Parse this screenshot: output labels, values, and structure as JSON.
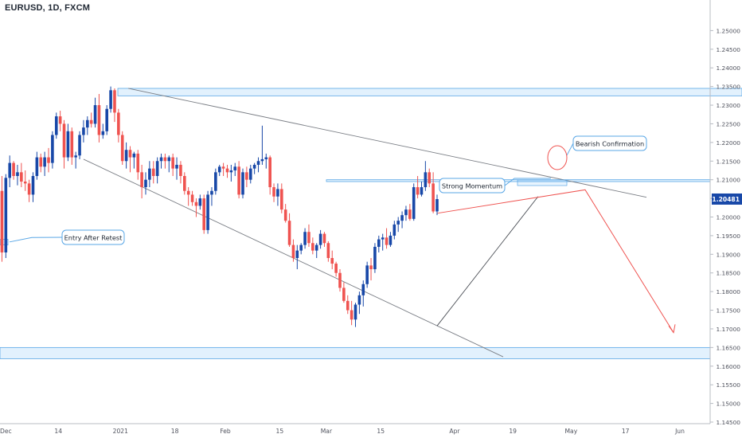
{
  "header": {
    "title": "EURUSD, 1D, FXCM"
  },
  "price_label": "1.20481",
  "chart_data": {
    "type": "candlestick",
    "title": "EURUSD, 1D, FXCM",
    "price_axis": {
      "min": 1.145,
      "max": 1.255,
      "ticks": [
        "1.25000",
        "1.24500",
        "1.24000",
        "1.23500",
        "1.23000",
        "1.22500",
        "1.22000",
        "1.21500",
        "1.21000",
        "1.20500",
        "1.20000",
        "1.19500",
        "1.19000",
        "1.18500",
        "1.18000",
        "1.17500",
        "1.17000",
        "1.16500",
        "1.16000",
        "1.15500",
        "1.15000",
        "1.14500"
      ],
      "current_price": 1.20481
    },
    "time_axis": {
      "labels": [
        "Dec",
        "14",
        "2021",
        "18",
        "Feb",
        "15",
        "Mar",
        "15",
        "Apr",
        "19",
        "May",
        "17",
        "Jun"
      ],
      "label_bars": [
        -0.5,
        14.5,
        30.5,
        44.5,
        57.5,
        71.5,
        83.5,
        97.5,
        116.5,
        131.5,
        146.5,
        160.5,
        174.5
      ]
    },
    "candles": [
      [
        1.207,
        1.211,
        1.188,
        1.1905
      ],
      [
        1.1905,
        1.2115,
        1.189,
        1.2105
      ],
      [
        1.2105,
        1.2165,
        1.208,
        1.2145
      ],
      [
        1.2145,
        1.215,
        1.21,
        1.211
      ],
      [
        1.211,
        1.214,
        1.2085,
        1.212
      ],
      [
        1.212,
        1.2145,
        1.208,
        1.2095
      ],
      [
        1.2095,
        1.2125,
        1.207,
        1.209
      ],
      [
        1.209,
        1.21,
        1.204,
        1.206
      ],
      [
        1.206,
        1.212,
        1.204,
        1.211
      ],
      [
        1.211,
        1.2175,
        1.21,
        1.216
      ],
      [
        1.216,
        1.217,
        1.212,
        1.2135
      ],
      [
        1.2135,
        1.2175,
        1.211,
        1.216
      ],
      [
        1.216,
        1.2185,
        1.212,
        1.2145
      ],
      [
        1.2145,
        1.223,
        1.213,
        1.222
      ],
      [
        1.222,
        1.228,
        1.221,
        1.227
      ],
      [
        1.227,
        1.2285,
        1.223,
        1.225
      ],
      [
        1.225,
        1.226,
        1.213,
        1.216
      ],
      [
        1.216,
        1.225,
        1.215,
        1.223
      ],
      [
        1.223,
        1.224,
        1.214,
        1.216
      ],
      [
        1.216,
        1.2175,
        1.213,
        1.2165
      ],
      [
        1.2165,
        1.223,
        1.2155,
        1.222
      ],
      [
        1.222,
        1.226,
        1.22,
        1.224
      ],
      [
        1.224,
        1.227,
        1.222,
        1.226
      ],
      [
        1.226,
        1.228,
        1.224,
        1.225
      ],
      [
        1.225,
        1.232,
        1.224,
        1.23
      ],
      [
        1.23,
        1.233,
        1.22,
        1.222
      ],
      [
        1.222,
        1.225,
        1.221,
        1.223
      ],
      [
        1.223,
        1.23,
        1.222,
        1.229
      ],
      [
        1.229,
        1.235,
        1.228,
        1.234
      ],
      [
        1.234,
        1.2345,
        1.2255,
        1.228
      ],
      [
        1.228,
        1.229,
        1.22,
        1.222
      ],
      [
        1.222,
        1.223,
        1.214,
        1.215
      ],
      [
        1.215,
        1.22,
        1.213,
        1.218
      ],
      [
        1.218,
        1.219,
        1.212,
        1.216
      ],
      [
        1.216,
        1.2175,
        1.213,
        1.217
      ],
      [
        1.217,
        1.218,
        1.21,
        1.212
      ],
      [
        1.212,
        1.214,
        1.205,
        1.208
      ],
      [
        1.208,
        1.212,
        1.206,
        1.21
      ],
      [
        1.21,
        1.215,
        1.208,
        1.213
      ],
      [
        1.213,
        1.215,
        1.209,
        1.211
      ],
      [
        1.211,
        1.216,
        1.209,
        1.215
      ],
      [
        1.215,
        1.217,
        1.213,
        1.216
      ],
      [
        1.216,
        1.217,
        1.213,
        1.215
      ],
      [
        1.215,
        1.2165,
        1.212,
        1.216
      ],
      [
        1.216,
        1.217,
        1.211,
        1.213
      ],
      [
        1.213,
        1.216,
        1.21,
        1.214
      ],
      [
        1.214,
        1.215,
        1.209,
        1.211
      ],
      [
        1.211,
        1.212,
        1.206,
        1.207
      ],
      [
        1.207,
        1.208,
        1.203,
        1.206
      ],
      [
        1.206,
        1.207,
        1.203,
        1.204
      ],
      [
        1.204,
        1.205,
        1.2,
        1.203
      ],
      [
        1.203,
        1.206,
        1.202,
        1.205
      ],
      [
        1.205,
        1.206,
        1.1955,
        1.1965
      ],
      [
        1.1965,
        1.207,
        1.1955,
        1.206
      ],
      [
        1.206,
        1.208,
        1.203,
        1.207
      ],
      [
        1.207,
        1.213,
        1.206,
        1.212
      ],
      [
        1.212,
        1.214,
        1.211,
        1.2135
      ],
      [
        1.2135,
        1.2145,
        1.211,
        1.213
      ],
      [
        1.213,
        1.214,
        1.2105,
        1.212
      ],
      [
        1.212,
        1.214,
        1.2095,
        1.2125
      ],
      [
        1.2125,
        1.2145,
        1.211,
        1.2135
      ],
      [
        1.2135,
        1.215,
        1.205,
        1.206
      ],
      [
        1.206,
        1.213,
        1.205,
        1.212
      ],
      [
        1.212,
        1.2135,
        1.208,
        1.21
      ],
      [
        1.21,
        1.214,
        1.209,
        1.213
      ],
      [
        1.213,
        1.2145,
        1.2115,
        1.214
      ],
      [
        1.214,
        1.216,
        1.212,
        1.215
      ],
      [
        1.215,
        1.2245,
        1.214,
        1.2155
      ],
      [
        1.2155,
        1.217,
        1.213,
        1.216
      ],
      [
        1.216,
        1.2165,
        1.206,
        1.208
      ],
      [
        1.208,
        1.209,
        1.204,
        1.2055
      ],
      [
        1.2055,
        1.209,
        1.203,
        1.2075
      ],
      [
        1.2075,
        1.209,
        1.201,
        1.202
      ],
      [
        1.202,
        1.2035,
        1.1985,
        1.199
      ],
      [
        1.199,
        1.201,
        1.192,
        1.1925
      ],
      [
        1.1925,
        1.194,
        1.188,
        1.189
      ],
      [
        1.189,
        1.1925,
        1.186,
        1.191
      ],
      [
        1.191,
        1.193,
        1.19,
        1.1925
      ],
      [
        1.1925,
        1.197,
        1.1915,
        1.196
      ],
      [
        1.196,
        1.198,
        1.192,
        1.193
      ],
      [
        1.193,
        1.1945,
        1.19,
        1.191
      ],
      [
        1.191,
        1.193,
        1.189,
        1.1925
      ],
      [
        1.1925,
        1.1965,
        1.1915,
        1.1955
      ],
      [
        1.1955,
        1.196,
        1.192,
        1.193
      ],
      [
        1.193,
        1.1935,
        1.188,
        1.189
      ],
      [
        1.189,
        1.191,
        1.186,
        1.1875
      ],
      [
        1.1875,
        1.188,
        1.184,
        1.185
      ],
      [
        1.185,
        1.186,
        1.18,
        1.181
      ],
      [
        1.181,
        1.1825,
        1.177,
        1.1775
      ],
      [
        1.1775,
        1.179,
        1.174,
        1.175
      ],
      [
        1.175,
        1.1775,
        1.171,
        1.1725
      ],
      [
        1.1725,
        1.177,
        1.1705,
        1.1765
      ],
      [
        1.1765,
        1.18,
        1.174,
        1.179
      ],
      [
        1.179,
        1.183,
        1.176,
        1.182
      ],
      [
        1.182,
        1.188,
        1.181,
        1.187
      ],
      [
        1.187,
        1.189,
        1.183,
        1.186
      ],
      [
        1.186,
        1.193,
        1.185,
        1.192
      ],
      [
        1.192,
        1.195,
        1.1905,
        1.194
      ],
      [
        1.194,
        1.1955,
        1.191,
        1.1945
      ],
      [
        1.1945,
        1.197,
        1.1915,
        1.1925
      ],
      [
        1.1925,
        1.196,
        1.192,
        1.195
      ],
      [
        1.195,
        1.199,
        1.194,
        1.198
      ],
      [
        1.198,
        1.2,
        1.196,
        1.199
      ],
      [
        1.199,
        1.2015,
        1.197,
        1.2005
      ],
      [
        1.2005,
        1.203,
        1.199,
        1.202
      ],
      [
        1.202,
        1.2035,
        1.199,
        1.1995
      ],
      [
        1.1995,
        1.209,
        1.199,
        1.208
      ],
      [
        1.208,
        1.211,
        1.205,
        1.206
      ],
      [
        1.206,
        1.2095,
        1.2055,
        1.208
      ],
      [
        1.208,
        1.215,
        1.207,
        1.212
      ],
      [
        1.212,
        1.213,
        1.208,
        1.209
      ],
      [
        1.209,
        1.212,
        1.201,
        1.2015
      ],
      [
        1.2015,
        1.206,
        1.2005,
        1.2048
      ]
    ],
    "levels": [
      {
        "label": "resistance-zone",
        "from": 1.2345,
        "to": 1.2325
      },
      {
        "label": "broken-level",
        "from": 1.21,
        "to": 1.2095
      },
      {
        "label": "support-zone",
        "from": 1.165,
        "to": 1.162
      },
      {
        "label": "entry-zone",
        "from": 1.194,
        "to": 1.1925
      }
    ],
    "annotations": [
      {
        "text": "Entry After Retest"
      },
      {
        "text": "Strong Momentum"
      },
      {
        "text": "Bearish Confirmation"
      }
    ],
    "colors": {
      "up": "#1848a8",
      "down": "#ef5350",
      "zone": "#2196f3"
    }
  }
}
